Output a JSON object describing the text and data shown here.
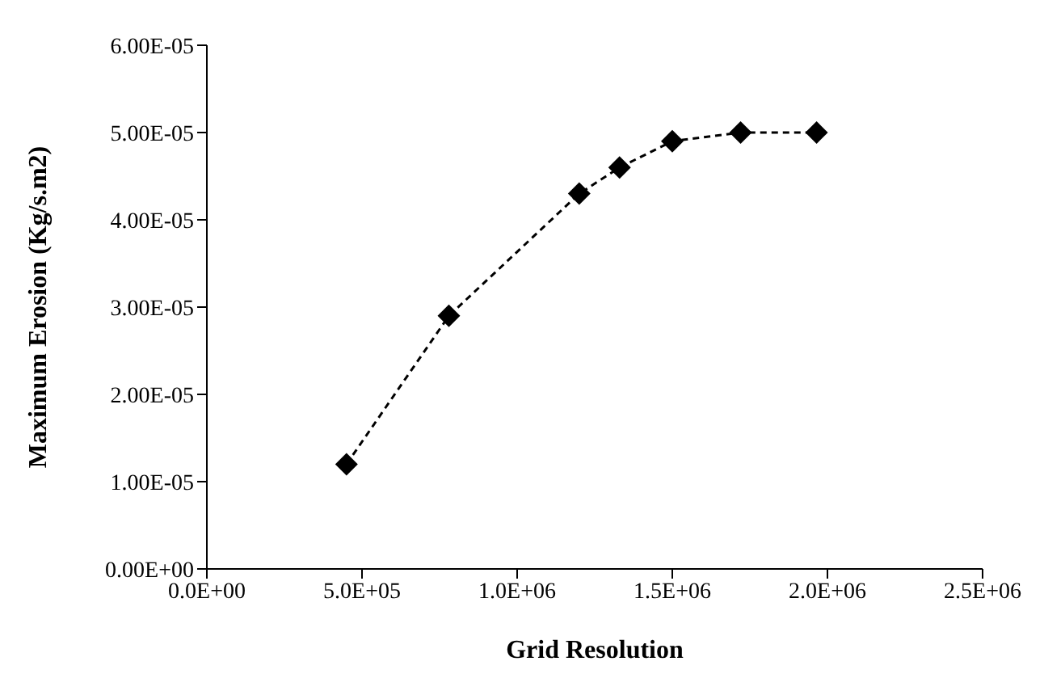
{
  "chart_data": {
    "type": "line",
    "xlabel": "Grid Resolution",
    "ylabel": "Maximum Erosion (Kg/s.m2)",
    "x": [
      450000,
      780000,
      1200000,
      1330000,
      1500000,
      1720000,
      1965000
    ],
    "series": [
      {
        "color": "#000000",
        "values": [
          1.2e-05,
          2.9e-05,
          4.3e-05,
          4.6e-05,
          4.9e-05,
          5e-05,
          5e-05
        ]
      }
    ],
    "xlim": [
      0,
      2500000
    ],
    "xticks": [
      {
        "value": 0,
        "label": "0.0E+00"
      },
      {
        "value": 500000,
        "label": "5.0E+05"
      },
      {
        "value": 1000000,
        "label": "1.0E+06"
      },
      {
        "value": 1500000,
        "label": "1.5E+06"
      },
      {
        "value": 2000000,
        "label": "2.0E+06"
      },
      {
        "value": 2500000,
        "label": "2.5E+06"
      }
    ],
    "ylim": [
      0,
      6e-05
    ],
    "yticks": [
      {
        "value": 0,
        "label": "0.00E+00"
      },
      {
        "value": 1e-05,
        "label": "1.00E-05"
      },
      {
        "value": 2e-05,
        "label": "2.00E-05"
      },
      {
        "value": 3e-05,
        "label": "3.00E-05"
      },
      {
        "value": 4e-05,
        "label": "4.00E-05"
      },
      {
        "value": 5e-05,
        "label": "5.00E-05"
      },
      {
        "value": 6e-05,
        "label": "6.00E-05"
      }
    ],
    "grid": false,
    "marker": "diamond",
    "line_style": "dashed"
  }
}
